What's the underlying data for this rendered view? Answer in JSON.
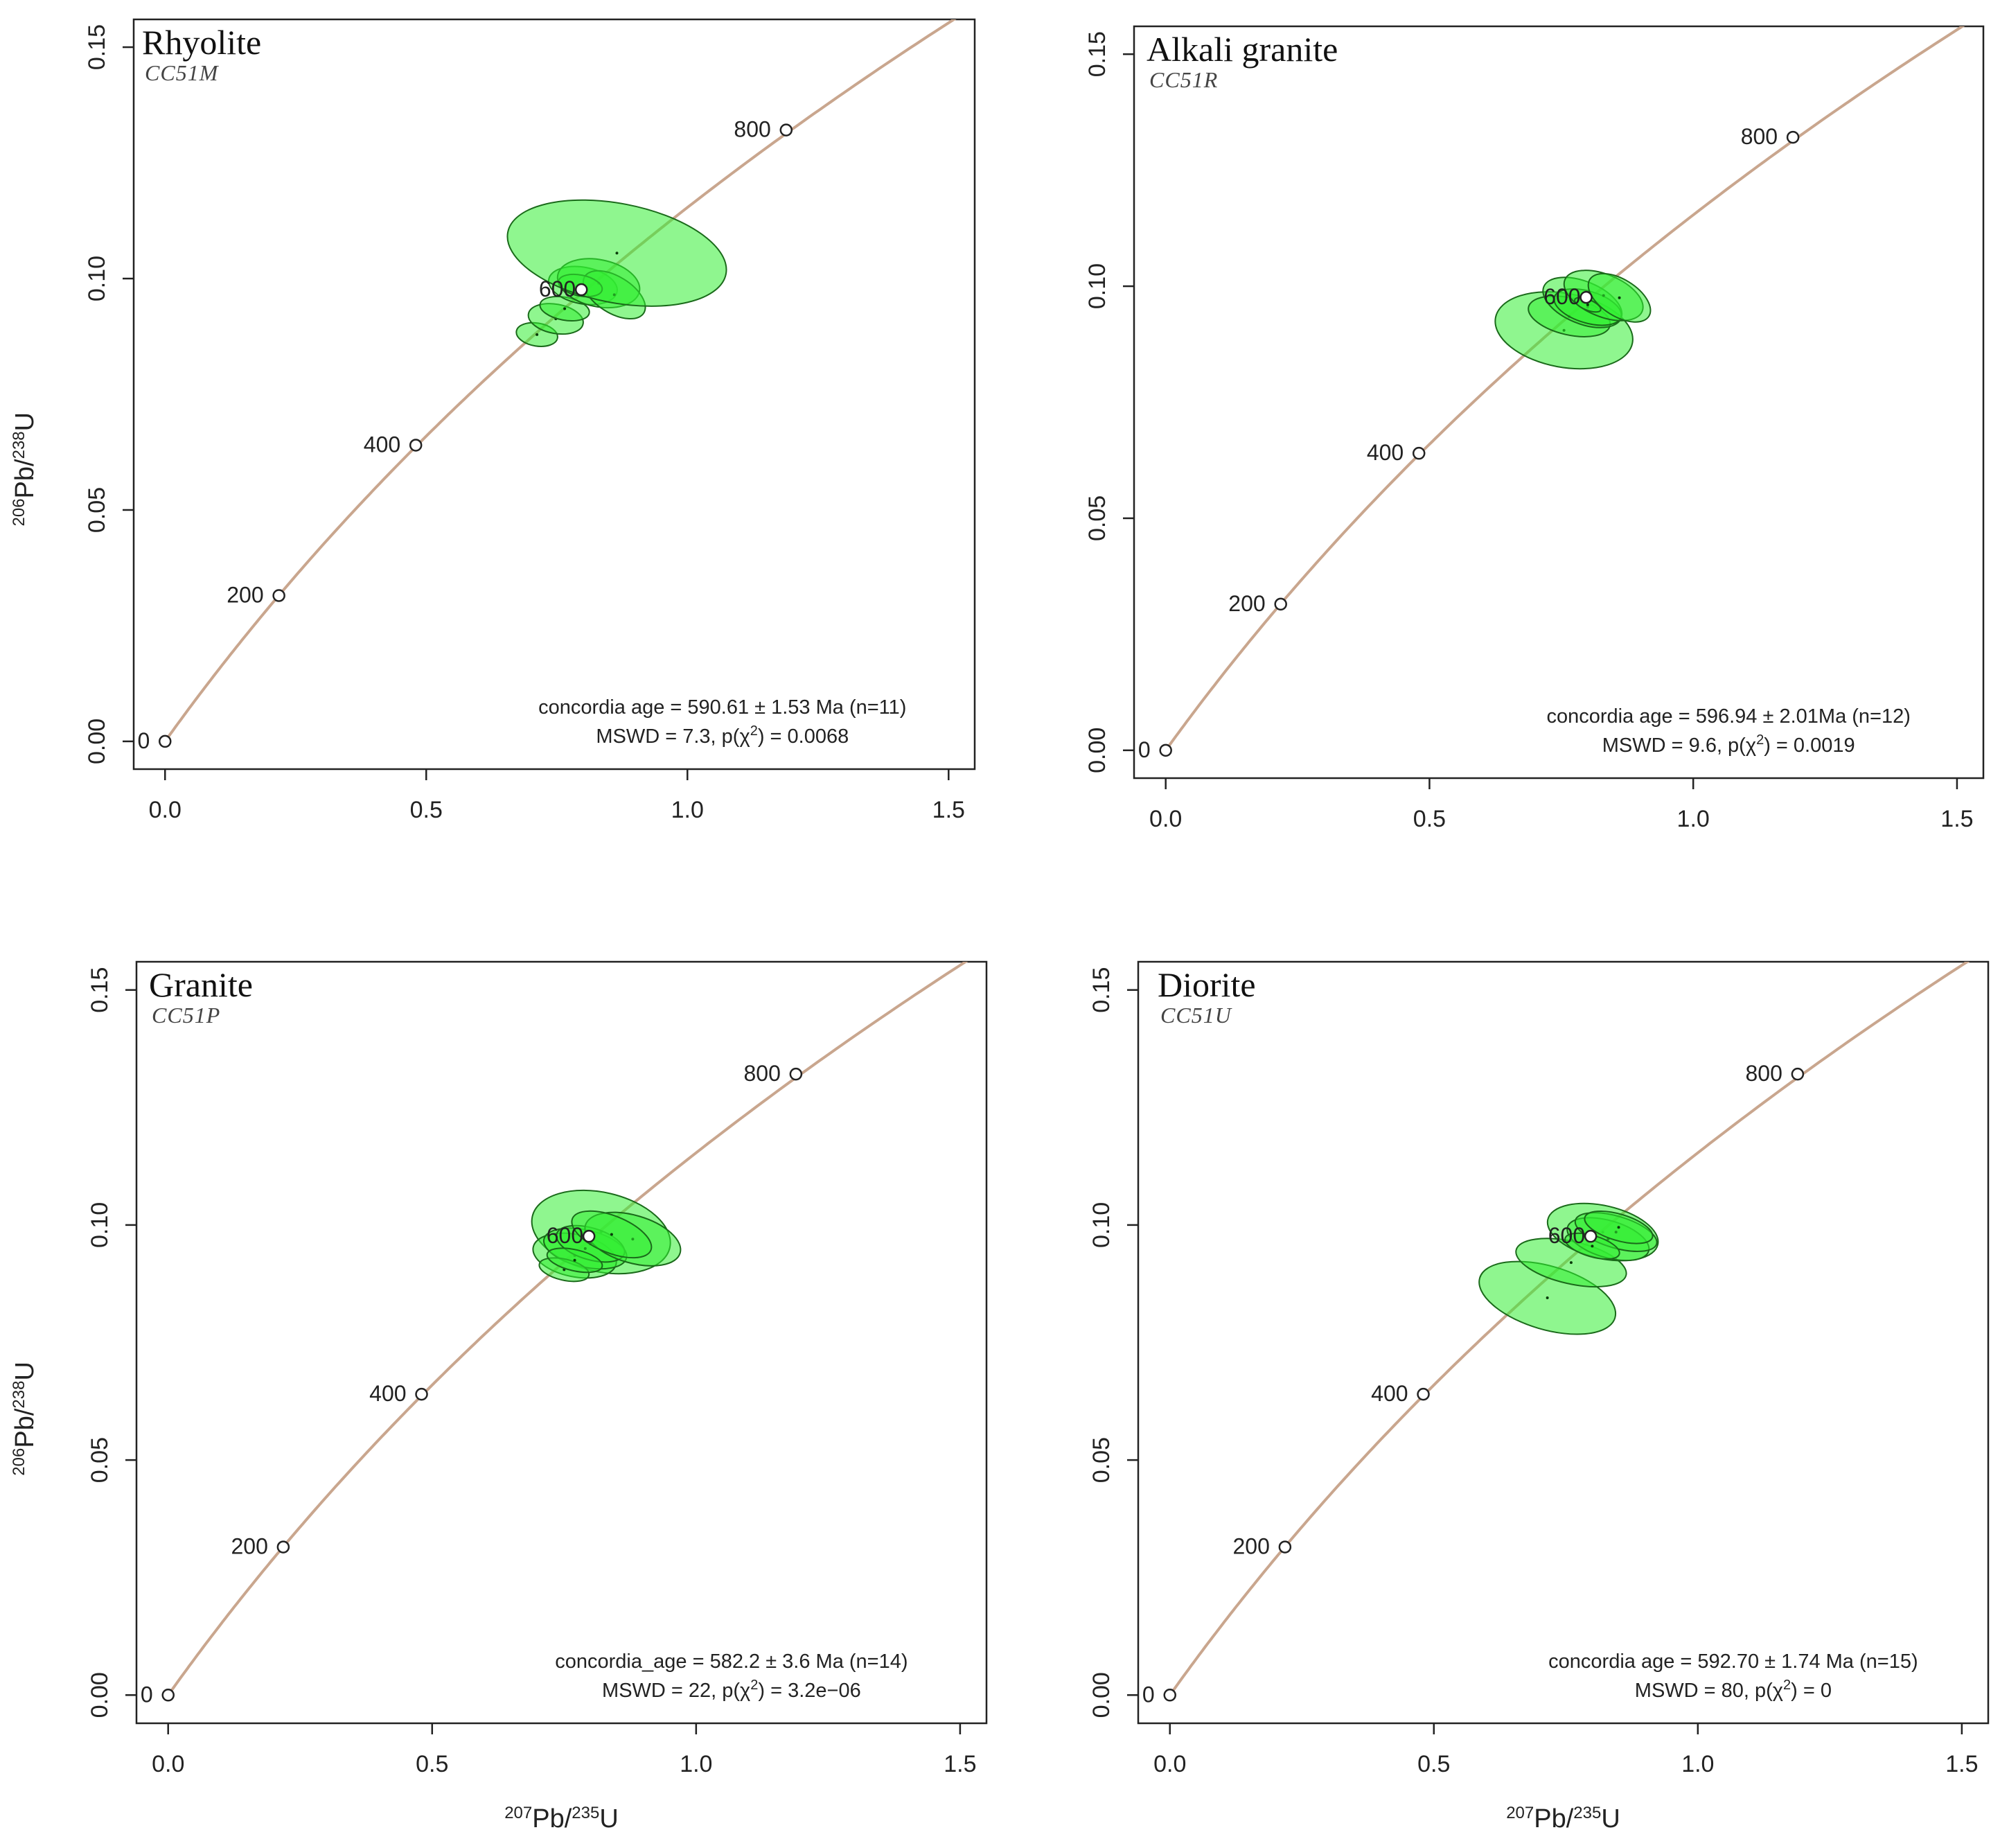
{
  "axis_labels": {
    "y_main": "Pb/",
    "y_sup1": "206",
    "y_sup2": "238",
    "y_tail": "U",
    "x_main": "Pb/",
    "x_sup1": "207",
    "x_sup2": "235",
    "x_tail": "U"
  },
  "chart_data": [
    {
      "type": "scatter",
      "title": "Rhyolite",
      "subtitle": "CC51M",
      "xlim": [
        -0.06,
        1.55
      ],
      "ylim": [
        -0.006,
        0.156
      ],
      "x_ticks": [
        0.0,
        0.5,
        1.0,
        1.5
      ],
      "x_tick_labels": [
        "0.0",
        "0.5",
        "1.0",
        "1.5"
      ],
      "y_ticks": [
        0.0,
        0.05,
        0.1,
        0.15
      ],
      "y_tick_labels": [
        "0.00",
        "0.05",
        "0.10",
        "0.15"
      ],
      "concordia_age_markers": [
        {
          "label": "0",
          "x": 0.0,
          "y": 0.0
        },
        {
          "label": "200",
          "x": 0.218,
          "y": 0.0315
        },
        {
          "label": "400",
          "x": 0.48,
          "y": 0.064
        },
        {
          "label": "600",
          "x": 0.797,
          "y": 0.0976
        },
        {
          "label": "800",
          "x": 1.189,
          "y": 0.1321
        }
      ],
      "ellipses": [
        {
          "x": 0.712,
          "y": 0.0879,
          "sx": 0.022,
          "sy": 0.0015,
          "rot": 0.65
        },
        {
          "x": 0.748,
          "y": 0.0913,
          "sx": 0.028,
          "sy": 0.002,
          "rot": 0.6
        },
        {
          "x": 0.765,
          "y": 0.0935,
          "sx": 0.022,
          "sy": 0.0018,
          "rot": 0.6
        },
        {
          "x": 0.8,
          "y": 0.0985,
          "sx": 0.035,
          "sy": 0.0025,
          "rot": 0.6
        },
        {
          "x": 0.83,
          "y": 0.099,
          "sx": 0.045,
          "sy": 0.003,
          "rot": 0.55
        },
        {
          "x": 0.86,
          "y": 0.0965,
          "sx": 0.035,
          "sy": 0.0025,
          "rot": 0.2
        },
        {
          "x": 0.795,
          "y": 0.0985,
          "sx": 0.02,
          "sy": 0.0016,
          "rot": 0.55
        },
        {
          "x": 0.865,
          "y": 0.1055,
          "sx": 0.095,
          "sy": 0.008,
          "rot": 0.58
        }
      ],
      "stats": {
        "line1": "concordia age = 590.61 ± 1.53 Ma (n=11)",
        "line2": "MSWD = 7.3, p(χ",
        "line2_sup": "2",
        "line2_tail": ") = 0.0068"
      }
    },
    {
      "type": "scatter",
      "title": "Alkali granite",
      "subtitle": "CC51R",
      "xlim": [
        -0.06,
        1.55
      ],
      "ylim": [
        -0.006,
        0.156
      ],
      "x_ticks": [
        0.0,
        0.5,
        1.0,
        1.5
      ],
      "x_tick_labels": [
        "0.0",
        "0.5",
        "1.0",
        "1.5"
      ],
      "y_ticks": [
        0.0,
        0.05,
        0.1,
        0.15
      ],
      "y_tick_labels": [
        "0.00",
        "0.05",
        "0.10",
        "0.15"
      ],
      "concordia_age_markers": [
        {
          "label": "0",
          "x": 0.0,
          "y": 0.0
        },
        {
          "label": "200",
          "x": 0.218,
          "y": 0.0315
        },
        {
          "label": "400",
          "x": 0.48,
          "y": 0.064
        },
        {
          "label": "600",
          "x": 0.797,
          "y": 0.0976
        },
        {
          "label": "800",
          "x": 1.189,
          "y": 0.1321
        }
      ],
      "ellipses": [
        {
          "x": 0.755,
          "y": 0.0905,
          "sx": 0.07,
          "sy": 0.005,
          "rot": 0.6
        },
        {
          "x": 0.765,
          "y": 0.0935,
          "sx": 0.035,
          "sy": 0.003,
          "rot": 0.5
        },
        {
          "x": 0.79,
          "y": 0.0965,
          "sx": 0.04,
          "sy": 0.003,
          "rot": 0.3
        },
        {
          "x": 0.8,
          "y": 0.0955,
          "sx": 0.03,
          "sy": 0.0025,
          "rot": 0.4
        },
        {
          "x": 0.83,
          "y": 0.098,
          "sx": 0.04,
          "sy": 0.003,
          "rot": 0.3
        },
        {
          "x": 0.86,
          "y": 0.0975,
          "sx": 0.035,
          "sy": 0.0025,
          "rot": 0.2
        },
        {
          "x": 0.8,
          "y": 0.096,
          "sx": 0.01,
          "sy": 0.001,
          "rot": 0.3
        }
      ],
      "stats": {
        "line1": "concordia age = 596.94 ± 2.01Ma (n=12)",
        "line2": "MSWD = 9.6, p(χ",
        "line2_sup": "2",
        "line2_tail": ") = 0.0019"
      }
    },
    {
      "type": "scatter",
      "title": "Granite",
      "subtitle": "CC51P",
      "xlim": [
        -0.06,
        1.55
      ],
      "ylim": [
        -0.006,
        0.156
      ],
      "x_ticks": [
        0.0,
        0.5,
        1.0,
        1.5
      ],
      "x_tick_labels": [
        "0.0",
        "0.5",
        "1.0",
        "1.5"
      ],
      "y_ticks": [
        0.0,
        0.05,
        0.1,
        0.15
      ],
      "y_tick_labels": [
        "0.00",
        "0.05",
        "0.10",
        "0.15"
      ],
      "concordia_age_markers": [
        {
          "label": "0",
          "x": 0.0,
          "y": 0.0
        },
        {
          "label": "200",
          "x": 0.218,
          "y": 0.0315
        },
        {
          "label": "400",
          "x": 0.48,
          "y": 0.064
        },
        {
          "label": "600",
          "x": 0.797,
          "y": 0.0976
        },
        {
          "label": "800",
          "x": 1.189,
          "y": 0.1321
        }
      ],
      "ellipses": [
        {
          "x": 0.82,
          "y": 0.0985,
          "sx": 0.075,
          "sy": 0.005,
          "rot": 0.5
        },
        {
          "x": 0.77,
          "y": 0.0935,
          "sx": 0.04,
          "sy": 0.003,
          "rot": 0.55
        },
        {
          "x": 0.79,
          "y": 0.095,
          "sx": 0.035,
          "sy": 0.003,
          "rot": 0.5
        },
        {
          "x": 0.8,
          "y": 0.096,
          "sx": 0.03,
          "sy": 0.0025,
          "rot": 0.4
        },
        {
          "x": 0.88,
          "y": 0.097,
          "sx": 0.045,
          "sy": 0.0035,
          "rot": 0.4
        },
        {
          "x": 0.75,
          "y": 0.0905,
          "sx": 0.02,
          "sy": 0.0018,
          "rot": 0.5
        },
        {
          "x": 0.77,
          "y": 0.0925,
          "sx": 0.02,
          "sy": 0.002,
          "rot": 0.5
        },
        {
          "x": 0.84,
          "y": 0.098,
          "sx": 0.035,
          "sy": 0.003,
          "rot": 0.3
        }
      ],
      "stats": {
        "line1": "concordia_age = 582.2 ± 3.6 Ma (n=14)",
        "line2": "MSWD = 22, p(χ",
        "line2_sup": "2",
        "line2_tail": ") = 3.2e−06"
      }
    },
    {
      "type": "scatter",
      "title": "Diorite",
      "subtitle": "CC51U",
      "xlim": [
        -0.06,
        1.55
      ],
      "ylim": [
        -0.006,
        0.156
      ],
      "x_ticks": [
        0.0,
        0.5,
        1.0,
        1.5
      ],
      "x_tick_labels": [
        "0.0",
        "0.5",
        "1.0",
        "1.5"
      ],
      "y_ticks": [
        0.0,
        0.05,
        0.1,
        0.15
      ],
      "y_tick_labels": [
        "0.00",
        "0.05",
        "0.10",
        "0.15"
      ],
      "concordia_age_markers": [
        {
          "label": "0",
          "x": 0.0,
          "y": 0.0
        },
        {
          "label": "200",
          "x": 0.218,
          "y": 0.0315
        },
        {
          "label": "400",
          "x": 0.48,
          "y": 0.064
        },
        {
          "label": "600",
          "x": 0.797,
          "y": 0.0976
        },
        {
          "label": "800",
          "x": 1.189,
          "y": 0.1321
        }
      ],
      "ellipses": [
        {
          "x": 0.715,
          "y": 0.0845,
          "sx": 0.06,
          "sy": 0.005,
          "rot": 0.4
        },
        {
          "x": 0.76,
          "y": 0.092,
          "sx": 0.04,
          "sy": 0.004,
          "rot": 0.5
        },
        {
          "x": 0.82,
          "y": 0.0985,
          "sx": 0.05,
          "sy": 0.004,
          "rot": 0.5
        },
        {
          "x": 0.83,
          "y": 0.097,
          "sx": 0.035,
          "sy": 0.003,
          "rot": 0.4
        },
        {
          "x": 0.845,
          "y": 0.0985,
          "sx": 0.03,
          "sy": 0.003,
          "rot": 0.4
        },
        {
          "x": 0.8,
          "y": 0.0955,
          "sx": 0.02,
          "sy": 0.002,
          "rot": 0.4
        },
        {
          "x": 0.85,
          "y": 0.0995,
          "sx": 0.025,
          "sy": 0.0025,
          "rot": 0.4
        }
      ],
      "stats": {
        "line1": "concordia age = 592.70 ± 1.74 Ma (n=15)",
        "line2": "MSWD = 80, p(χ",
        "line2_sup": "2",
        "line2_tail": ") = 0"
      }
    }
  ],
  "colors": {
    "concordia_line": "#c9a68e",
    "ellipse_fill": "#33ee33",
    "ellipse_stroke": "#1a6a1a",
    "frame": "#222222"
  }
}
